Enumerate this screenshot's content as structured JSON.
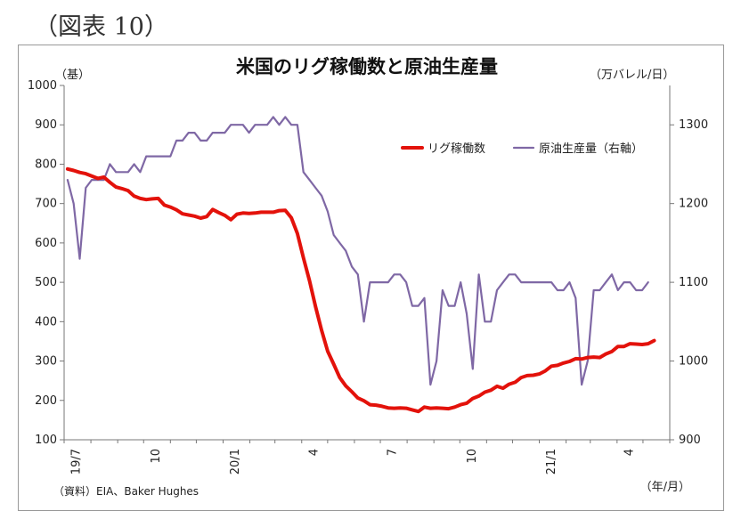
{
  "figure_label": "（図表 10）",
  "chart_data": {
    "type": "line",
    "title": "米国のリグ稼働数と原油生産量",
    "left_unit": "（基）",
    "right_unit": "（万バレル/日）",
    "x_unit": "（年/月）",
    "source": "（資料）EIA、Baker Hughes",
    "grid": false,
    "legend_position": "top-right",
    "x_range": [
      "2019-07",
      "2021-06"
    ],
    "x_ticks": [
      {
        "label": "19/7",
        "month": "2019-07"
      },
      {
        "label": "10",
        "month": "2019-10"
      },
      {
        "label": "20/1",
        "month": "2020-01"
      },
      {
        "label": "4",
        "month": "2020-04"
      },
      {
        "label": "7",
        "month": "2020-07"
      },
      {
        "label": "10",
        "month": "2020-10"
      },
      {
        "label": "21/1",
        "month": "2021-01"
      },
      {
        "label": "4",
        "month": "2021-04"
      }
    ],
    "y_left": {
      "min": 100,
      "max": 1000,
      "ticks": [
        "100",
        "200",
        "300",
        "400",
        "500",
        "600",
        "700",
        "800",
        "900",
        "1000"
      ]
    },
    "y_right": {
      "min": 900,
      "max": 1350,
      "ticks": [
        "900",
        "1000",
        "1100",
        "1200",
        "1300"
      ]
    },
    "series": [
      {
        "name": "リグ稼働数",
        "axis": "left",
        "color": "#e3120b",
        "values": [
          [
            "2019-07-05",
            788
          ],
          [
            "2019-07-12",
            784
          ],
          [
            "2019-07-19",
            779
          ],
          [
            "2019-07-26",
            776
          ],
          [
            "2019-08-02",
            770
          ],
          [
            "2019-08-09",
            764
          ],
          [
            "2019-08-16",
            767
          ],
          [
            "2019-08-23",
            754
          ],
          [
            "2019-08-30",
            742
          ],
          [
            "2019-09-06",
            738
          ],
          [
            "2019-09-13",
            733
          ],
          [
            "2019-09-20",
            719
          ],
          [
            "2019-09-27",
            713
          ],
          [
            "2019-10-04",
            710
          ],
          [
            "2019-10-11",
            712
          ],
          [
            "2019-10-18",
            713
          ],
          [
            "2019-10-25",
            696
          ],
          [
            "2019-11-01",
            691
          ],
          [
            "2019-11-08",
            684
          ],
          [
            "2019-11-15",
            674
          ],
          [
            "2019-11-22",
            671
          ],
          [
            "2019-11-29",
            668
          ],
          [
            "2019-12-06",
            663
          ],
          [
            "2019-12-13",
            667
          ],
          [
            "2019-12-20",
            685
          ],
          [
            "2019-12-27",
            677
          ],
          [
            "2020-01-03",
            670
          ],
          [
            "2020-01-10",
            659
          ],
          [
            "2020-01-17",
            673
          ],
          [
            "2020-01-24",
            676
          ],
          [
            "2020-01-31",
            675
          ],
          [
            "2020-02-07",
            676
          ],
          [
            "2020-02-14",
            678
          ],
          [
            "2020-02-21",
            678
          ],
          [
            "2020-02-28",
            678
          ],
          [
            "2020-03-06",
            682
          ],
          [
            "2020-03-13",
            683
          ],
          [
            "2020-03-20",
            664
          ],
          [
            "2020-03-27",
            624
          ],
          [
            "2020-04-03",
            562
          ],
          [
            "2020-04-10",
            504
          ],
          [
            "2020-04-17",
            438
          ],
          [
            "2020-04-24",
            378
          ],
          [
            "2020-05-01",
            325
          ],
          [
            "2020-05-08",
            292
          ],
          [
            "2020-05-15",
            258
          ],
          [
            "2020-05-22",
            237
          ],
          [
            "2020-05-29",
            222
          ],
          [
            "2020-06-05",
            206
          ],
          [
            "2020-06-12",
            199
          ],
          [
            "2020-06-19",
            189
          ],
          [
            "2020-06-26",
            188
          ],
          [
            "2020-07-03",
            185
          ],
          [
            "2020-07-10",
            181
          ],
          [
            "2020-07-17",
            180
          ],
          [
            "2020-07-24",
            181
          ],
          [
            "2020-07-31",
            180
          ],
          [
            "2020-08-07",
            176
          ],
          [
            "2020-08-14",
            172
          ],
          [
            "2020-08-21",
            183
          ],
          [
            "2020-08-28",
            180
          ],
          [
            "2020-09-04",
            181
          ],
          [
            "2020-09-11",
            180
          ],
          [
            "2020-09-18",
            179
          ],
          [
            "2020-09-25",
            183
          ],
          [
            "2020-10-02",
            189
          ],
          [
            "2020-10-09",
            193
          ],
          [
            "2020-10-16",
            205
          ],
          [
            "2020-10-23",
            211
          ],
          [
            "2020-10-30",
            221
          ],
          [
            "2020-11-06",
            226
          ],
          [
            "2020-11-13",
            236
          ],
          [
            "2020-11-20",
            231
          ],
          [
            "2020-11-27",
            241
          ],
          [
            "2020-12-04",
            246
          ],
          [
            "2020-12-11",
            258
          ],
          [
            "2020-12-18",
            263
          ],
          [
            "2020-12-25",
            264
          ],
          [
            "2021-01-01",
            267
          ],
          [
            "2021-01-08",
            275
          ],
          [
            "2021-01-15",
            287
          ],
          [
            "2021-01-22",
            289
          ],
          [
            "2021-01-29",
            295
          ],
          [
            "2021-02-05",
            299
          ],
          [
            "2021-02-12",
            306
          ],
          [
            "2021-02-19",
            305
          ],
          [
            "2021-02-26",
            309
          ],
          [
            "2021-03-05",
            310
          ],
          [
            "2021-03-12",
            309
          ],
          [
            "2021-03-19",
            318
          ],
          [
            "2021-03-26",
            324
          ],
          [
            "2021-04-02",
            337
          ],
          [
            "2021-04-09",
            337
          ],
          [
            "2021-04-16",
            344
          ],
          [
            "2021-04-23",
            343
          ],
          [
            "2021-04-30",
            342
          ],
          [
            "2021-05-07",
            344
          ],
          [
            "2021-05-14",
            352
          ]
        ]
      },
      {
        "name": "原油生産量（右軸）",
        "axis": "right",
        "color": "#7f68a5",
        "values": [
          [
            "2019-07-05",
            1230
          ],
          [
            "2019-07-12",
            1200
          ],
          [
            "2019-07-19",
            1130
          ],
          [
            "2019-07-26",
            1220
          ],
          [
            "2019-08-02",
            1230
          ],
          [
            "2019-08-09",
            1230
          ],
          [
            "2019-08-16",
            1230
          ],
          [
            "2019-08-23",
            1250
          ],
          [
            "2019-08-30",
            1240
          ],
          [
            "2019-09-06",
            1240
          ],
          [
            "2019-09-13",
            1240
          ],
          [
            "2019-09-20",
            1250
          ],
          [
            "2019-09-27",
            1240
          ],
          [
            "2019-10-04",
            1260
          ],
          [
            "2019-10-11",
            1260
          ],
          [
            "2019-10-18",
            1260
          ],
          [
            "2019-10-25",
            1260
          ],
          [
            "2019-11-01",
            1260
          ],
          [
            "2019-11-08",
            1280
          ],
          [
            "2019-11-15",
            1280
          ],
          [
            "2019-11-22",
            1290
          ],
          [
            "2019-11-29",
            1290
          ],
          [
            "2019-12-06",
            1280
          ],
          [
            "2019-12-13",
            1280
          ],
          [
            "2019-12-20",
            1290
          ],
          [
            "2019-12-27",
            1290
          ],
          [
            "2020-01-03",
            1290
          ],
          [
            "2020-01-10",
            1300
          ],
          [
            "2020-01-17",
            1300
          ],
          [
            "2020-01-24",
            1300
          ],
          [
            "2020-01-31",
            1290
          ],
          [
            "2020-02-07",
            1300
          ],
          [
            "2020-02-14",
            1300
          ],
          [
            "2020-02-21",
            1300
          ],
          [
            "2020-02-28",
            1310
          ],
          [
            "2020-03-06",
            1300
          ],
          [
            "2020-03-13",
            1310
          ],
          [
            "2020-03-20",
            1300
          ],
          [
            "2020-03-27",
            1300
          ],
          [
            "2020-04-03",
            1240
          ],
          [
            "2020-04-10",
            1230
          ],
          [
            "2020-04-17",
            1220
          ],
          [
            "2020-04-24",
            1210
          ],
          [
            "2020-05-01",
            1190
          ],
          [
            "2020-05-08",
            1160
          ],
          [
            "2020-05-15",
            1150
          ],
          [
            "2020-05-22",
            1140
          ],
          [
            "2020-05-29",
            1120
          ],
          [
            "2020-06-05",
            1110
          ],
          [
            "2020-06-12",
            1050
          ],
          [
            "2020-06-19",
            1100
          ],
          [
            "2020-06-26",
            1100
          ],
          [
            "2020-07-03",
            1100
          ],
          [
            "2020-07-10",
            1100
          ],
          [
            "2020-07-17",
            1110
          ],
          [
            "2020-07-24",
            1110
          ],
          [
            "2020-07-31",
            1100
          ],
          [
            "2020-08-07",
            1070
          ],
          [
            "2020-08-14",
            1070
          ],
          [
            "2020-08-21",
            1080
          ],
          [
            "2020-08-28",
            970
          ],
          [
            "2020-09-04",
            1000
          ],
          [
            "2020-09-11",
            1090
          ],
          [
            "2020-09-18",
            1070
          ],
          [
            "2020-09-25",
            1070
          ],
          [
            "2020-10-02",
            1100
          ],
          [
            "2020-10-09",
            1060
          ],
          [
            "2020-10-16",
            990
          ],
          [
            "2020-10-23",
            1110
          ],
          [
            "2020-10-30",
            1050
          ],
          [
            "2020-11-06",
            1050
          ],
          [
            "2020-11-13",
            1090
          ],
          [
            "2020-11-20",
            1100
          ],
          [
            "2020-11-27",
            1110
          ],
          [
            "2020-12-04",
            1110
          ],
          [
            "2020-12-11",
            1100
          ],
          [
            "2020-12-18",
            1100
          ],
          [
            "2020-12-25",
            1100
          ],
          [
            "2021-01-01",
            1100
          ],
          [
            "2021-01-08",
            1100
          ],
          [
            "2021-01-15",
            1100
          ],
          [
            "2021-01-22",
            1090
          ],
          [
            "2021-01-29",
            1090
          ],
          [
            "2021-02-05",
            1100
          ],
          [
            "2021-02-12",
            1080
          ],
          [
            "2021-02-19",
            970
          ],
          [
            "2021-02-26",
            1000
          ],
          [
            "2021-03-05",
            1090
          ],
          [
            "2021-03-12",
            1090
          ],
          [
            "2021-03-19",
            1100
          ],
          [
            "2021-03-26",
            1110
          ],
          [
            "2021-04-02",
            1090
          ],
          [
            "2021-04-09",
            1100
          ],
          [
            "2021-04-16",
            1100
          ],
          [
            "2021-04-23",
            1090
          ],
          [
            "2021-04-30",
            1090
          ],
          [
            "2021-05-07",
            1100
          ]
        ]
      }
    ]
  }
}
